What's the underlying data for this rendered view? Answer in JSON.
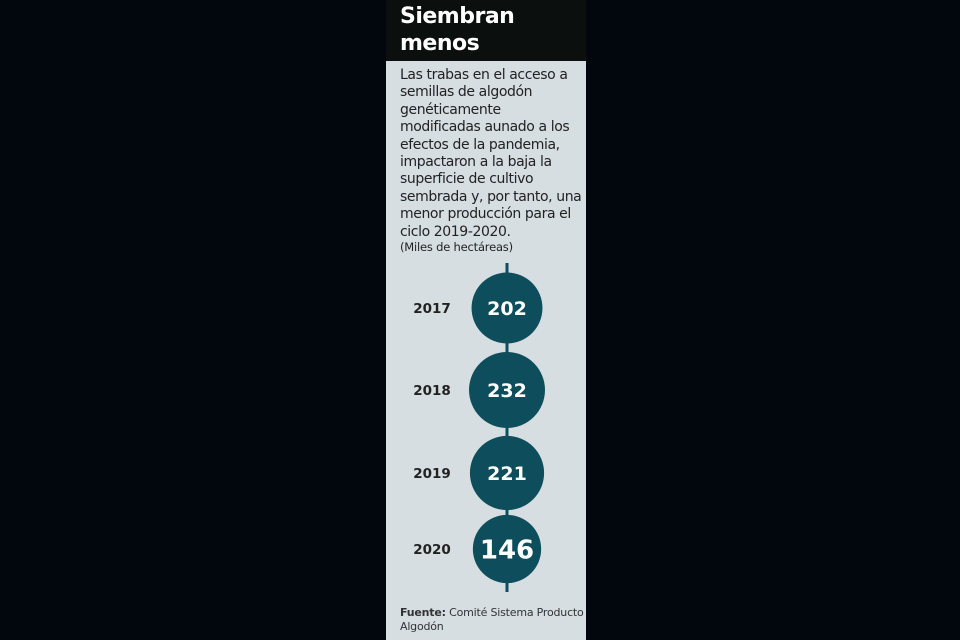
{
  "title": "Siembran menos",
  "description": "Las trabas en el acceso a semillas de algodón genéticamente modificadas aunado a los efectos de la pandemia, impactaron a la baja la superficie de cultivo sembrada y, por tanto, una menor producción para el ciclo 2019-2020.",
  "source_label": "Fuente:",
  "source_text": "Comité Sistema Producto Algodón",
  "colors": {
    "bubble": "#0d4d5c",
    "panel": "#d6dee2",
    "header": "#0b0f0e"
  },
  "chart_data": {
    "type": "bubble-timeline",
    "unit_label": "(Miles de hectáreas)",
    "categories": [
      "2017",
      "2018",
      "2019",
      "2020"
    ],
    "values": [
      202,
      232,
      221,
      146
    ]
  }
}
